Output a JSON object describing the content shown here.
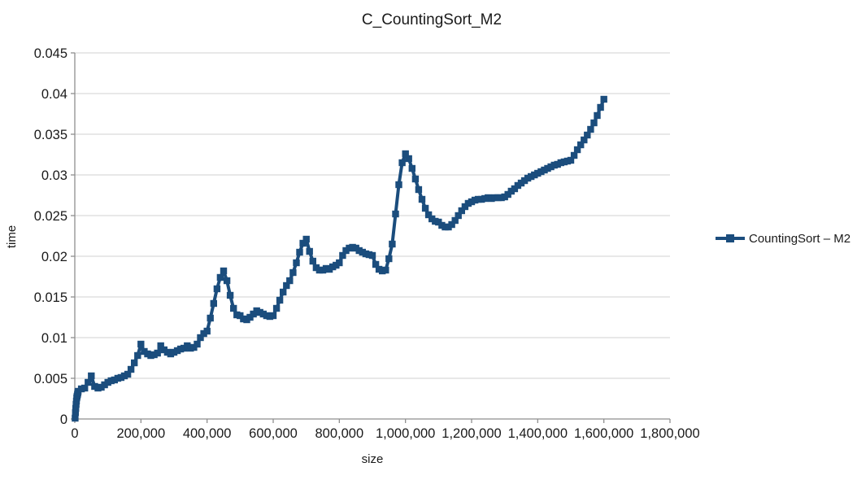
{
  "title": "C_CountingSort_M2",
  "legend": {
    "label": "CountingSort – M2"
  },
  "colors": {
    "series": "#1b4d7d",
    "gridline": "#d9d9d9",
    "axis": "#8e8e8e",
    "text": "#1a1a1a",
    "background": "#ffffff"
  },
  "chart_data": {
    "type": "line",
    "title": "C_CountingSort_M2",
    "xlabel": "size",
    "ylabel": "time",
    "xlim": [
      0,
      1800000
    ],
    "ylim": [
      0,
      0.045
    ],
    "x_tick_step": 200000,
    "y_tick_step": 0.005,
    "x_ticks": [
      "0",
      "200,000",
      "400,000",
      "600,000",
      "800,000",
      "1,000,000",
      "1,200,000",
      "1,400,000",
      "1,600,000",
      "1,800,000"
    ],
    "y_ticks": [
      "0",
      "0.005",
      "0.01",
      "0.015",
      "0.02",
      "0.025",
      "0.03",
      "0.035",
      "0.04",
      "0.045"
    ],
    "grid": "horizontal",
    "legend_position": "right",
    "marker": "square",
    "series": [
      {
        "name": "CountingSort – M2",
        "color": "#1b4d7d",
        "points": [
          [
            1000,
            0.0001
          ],
          [
            2000,
            0.0008
          ],
          [
            3000,
            0.0013
          ],
          [
            4000,
            0.0018
          ],
          [
            5000,
            0.0022
          ],
          [
            6000,
            0.0026
          ],
          [
            7000,
            0.0028
          ],
          [
            8000,
            0.003
          ],
          [
            9000,
            0.0032
          ],
          [
            10000,
            0.0034
          ],
          [
            20000,
            0.0037
          ],
          [
            30000,
            0.0038
          ],
          [
            40000,
            0.0045
          ],
          [
            50000,
            0.0053
          ],
          [
            60000,
            0.004
          ],
          [
            70000,
            0.0038
          ],
          [
            80000,
            0.0039
          ],
          [
            90000,
            0.0042
          ],
          [
            100000,
            0.0045
          ],
          [
            110000,
            0.0047
          ],
          [
            120000,
            0.0048
          ],
          [
            130000,
            0.005
          ],
          [
            140000,
            0.0051
          ],
          [
            150000,
            0.0053
          ],
          [
            160000,
            0.0055
          ],
          [
            170000,
            0.0061
          ],
          [
            180000,
            0.0069
          ],
          [
            190000,
            0.0078
          ],
          [
            200000,
            0.0092
          ],
          [
            210000,
            0.0083
          ],
          [
            220000,
            0.008
          ],
          [
            230000,
            0.0078
          ],
          [
            240000,
            0.0079
          ],
          [
            250000,
            0.0081
          ],
          [
            260000,
            0.009
          ],
          [
            270000,
            0.0085
          ],
          [
            280000,
            0.0082
          ],
          [
            290000,
            0.008
          ],
          [
            300000,
            0.0082
          ],
          [
            310000,
            0.0084
          ],
          [
            320000,
            0.0086
          ],
          [
            330000,
            0.0087
          ],
          [
            340000,
            0.009
          ],
          [
            350000,
            0.0087
          ],
          [
            360000,
            0.0088
          ],
          [
            370000,
            0.0092
          ],
          [
            380000,
            0.01
          ],
          [
            390000,
            0.0105
          ],
          [
            400000,
            0.0108
          ],
          [
            410000,
            0.0124
          ],
          [
            420000,
            0.0142
          ],
          [
            430000,
            0.016
          ],
          [
            440000,
            0.0174
          ],
          [
            450000,
            0.0182
          ],
          [
            460000,
            0.017
          ],
          [
            470000,
            0.0152
          ],
          [
            480000,
            0.0136
          ],
          [
            490000,
            0.0128
          ],
          [
            500000,
            0.0127
          ],
          [
            510000,
            0.0123
          ],
          [
            520000,
            0.0122
          ],
          [
            530000,
            0.0125
          ],
          [
            540000,
            0.0129
          ],
          [
            550000,
            0.0133
          ],
          [
            560000,
            0.0131
          ],
          [
            570000,
            0.0129
          ],
          [
            580000,
            0.0127
          ],
          [
            590000,
            0.0126
          ],
          [
            600000,
            0.0127
          ],
          [
            610000,
            0.0136
          ],
          [
            620000,
            0.0146
          ],
          [
            630000,
            0.0156
          ],
          [
            640000,
            0.0164
          ],
          [
            650000,
            0.017
          ],
          [
            660000,
            0.018
          ],
          [
            670000,
            0.0192
          ],
          [
            680000,
            0.0205
          ],
          [
            690000,
            0.0216
          ],
          [
            700000,
            0.0221
          ],
          [
            710000,
            0.0206
          ],
          [
            720000,
            0.0194
          ],
          [
            730000,
            0.0186
          ],
          [
            740000,
            0.0183
          ],
          [
            750000,
            0.0183
          ],
          [
            760000,
            0.0185
          ],
          [
            770000,
            0.0184
          ],
          [
            780000,
            0.0187
          ],
          [
            790000,
            0.0189
          ],
          [
            800000,
            0.0192
          ],
          [
            810000,
            0.0201
          ],
          [
            820000,
            0.0207
          ],
          [
            830000,
            0.021
          ],
          [
            840000,
            0.0211
          ],
          [
            850000,
            0.021
          ],
          [
            860000,
            0.0207
          ],
          [
            870000,
            0.0205
          ],
          [
            880000,
            0.0203
          ],
          [
            890000,
            0.0202
          ],
          [
            900000,
            0.0201
          ],
          [
            910000,
            0.019
          ],
          [
            920000,
            0.0184
          ],
          [
            930000,
            0.0182
          ],
          [
            940000,
            0.0183
          ],
          [
            950000,
            0.0197
          ],
          [
            960000,
            0.0215
          ],
          [
            970000,
            0.0252
          ],
          [
            980000,
            0.0288
          ],
          [
            990000,
            0.0315
          ],
          [
            1000000,
            0.0326
          ],
          [
            1010000,
            0.032
          ],
          [
            1020000,
            0.0308
          ],
          [
            1030000,
            0.0295
          ],
          [
            1040000,
            0.0282
          ],
          [
            1050000,
            0.027
          ],
          [
            1060000,
            0.0259
          ],
          [
            1070000,
            0.0251
          ],
          [
            1080000,
            0.0246
          ],
          [
            1090000,
            0.0243
          ],
          [
            1100000,
            0.0242
          ],
          [
            1110000,
            0.0238
          ],
          [
            1120000,
            0.0236
          ],
          [
            1130000,
            0.0236
          ],
          [
            1140000,
            0.0239
          ],
          [
            1150000,
            0.0244
          ],
          [
            1160000,
            0.025
          ],
          [
            1170000,
            0.0256
          ],
          [
            1180000,
            0.0261
          ],
          [
            1190000,
            0.0265
          ],
          [
            1200000,
            0.0267
          ],
          [
            1210000,
            0.0269
          ],
          [
            1220000,
            0.027
          ],
          [
            1230000,
            0.027
          ],
          [
            1240000,
            0.0271
          ],
          [
            1250000,
            0.0272
          ],
          [
            1260000,
            0.0271
          ],
          [
            1270000,
            0.0272
          ],
          [
            1280000,
            0.0272
          ],
          [
            1290000,
            0.0272
          ],
          [
            1300000,
            0.0273
          ],
          [
            1310000,
            0.0276
          ],
          [
            1320000,
            0.028
          ],
          [
            1330000,
            0.0283
          ],
          [
            1340000,
            0.0287
          ],
          [
            1350000,
            0.029
          ],
          [
            1360000,
            0.0293
          ],
          [
            1370000,
            0.0296
          ],
          [
            1380000,
            0.0298
          ],
          [
            1390000,
            0.03
          ],
          [
            1400000,
            0.0302
          ],
          [
            1410000,
            0.0304
          ],
          [
            1420000,
            0.0306
          ],
          [
            1430000,
            0.0308
          ],
          [
            1440000,
            0.031
          ],
          [
            1450000,
            0.0312
          ],
          [
            1460000,
            0.0313
          ],
          [
            1470000,
            0.0315
          ],
          [
            1480000,
            0.0316
          ],
          [
            1490000,
            0.0317
          ],
          [
            1500000,
            0.0318
          ],
          [
            1510000,
            0.0324
          ],
          [
            1520000,
            0.0331
          ],
          [
            1530000,
            0.0337
          ],
          [
            1540000,
            0.0343
          ],
          [
            1550000,
            0.0349
          ],
          [
            1560000,
            0.0356
          ],
          [
            1570000,
            0.0364
          ],
          [
            1580000,
            0.0373
          ],
          [
            1590000,
            0.0383
          ],
          [
            1600000,
            0.0393
          ]
        ]
      }
    ]
  }
}
